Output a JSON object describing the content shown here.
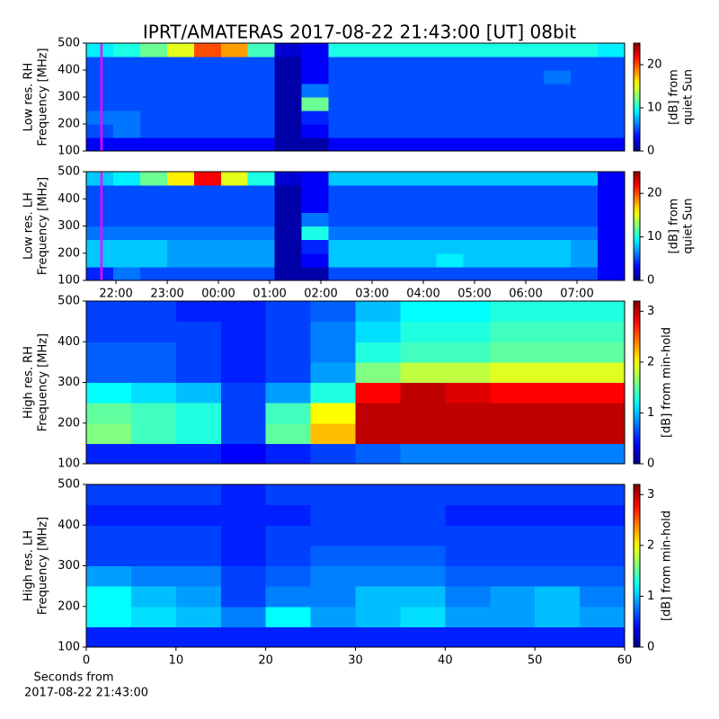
{
  "title": "IPRT/AMATERAS 2017-08-22 21:43:00 [UT]   08bit",
  "chart_data": [
    {
      "type": "heatmap",
      "ylabel": [
        "Low res. RH",
        "Frequency [MHz]"
      ],
      "colorbar_label": [
        "[dB] from",
        "quiet Sun"
      ],
      "colormap": "jet",
      "xlim": [
        21.42,
        31.93
      ],
      "ylim": [
        100,
        500
      ],
      "yticks": [
        100,
        200,
        300,
        400,
        500
      ],
      "clim": [
        0,
        25
      ],
      "cticks": [
        0,
        10,
        20
      ],
      "marker_x": 21.7167,
      "marker_color": "#ff00ff",
      "z": [
        [
          3,
          3,
          3,
          3,
          3,
          3,
          3,
          1,
          1,
          3,
          3,
          3,
          3,
          3,
          3,
          3,
          3,
          3,
          3,
          3
        ],
        [
          5,
          6,
          5,
          5,
          5,
          5,
          5,
          1,
          3,
          5,
          5,
          5,
          5,
          5,
          5,
          5,
          5,
          5,
          5,
          5
        ],
        [
          6,
          6,
          5,
          5,
          5,
          5,
          5,
          1,
          4,
          5,
          5,
          5,
          5,
          5,
          5,
          5,
          5,
          5,
          5,
          5
        ],
        [
          5,
          5,
          5,
          5,
          5,
          5,
          5,
          1,
          12,
          5,
          5,
          5,
          5,
          5,
          5,
          5,
          5,
          5,
          5,
          5
        ],
        [
          5,
          5,
          5,
          5,
          5,
          5,
          5,
          1,
          6,
          5,
          5,
          5,
          5,
          5,
          5,
          5,
          5,
          5,
          5,
          5
        ],
        [
          5,
          5,
          5,
          5,
          5,
          5,
          5,
          1,
          3,
          5,
          5,
          5,
          5,
          5,
          5,
          5,
          5,
          6,
          5,
          5
        ],
        [
          5,
          5,
          5,
          5,
          5,
          5,
          5,
          1,
          3,
          5,
          5,
          5,
          5,
          5,
          5,
          5,
          5,
          5,
          5,
          5
        ],
        [
          9,
          10,
          12,
          15,
          20,
          18,
          11,
          2,
          3,
          10,
          10,
          10,
          10,
          10,
          10,
          10,
          10,
          10,
          10,
          9
        ]
      ]
    },
    {
      "type": "heatmap",
      "ylabel": [
        "Low res. LH",
        "Frequency [MHz]"
      ],
      "colorbar_label": [
        "[dB] from",
        "quiet Sun"
      ],
      "colormap": "jet",
      "xlim": [
        21.42,
        31.93
      ],
      "ylim": [
        100,
        500
      ],
      "yticks": [
        100,
        200,
        300,
        400,
        500
      ],
      "xticks": [
        {
          "value": 22,
          "label": "22:00"
        },
        {
          "value": 23,
          "label": "23:00"
        },
        {
          "value": 24,
          "label": "00:00"
        },
        {
          "value": 25,
          "label": "01:00"
        },
        {
          "value": 26,
          "label": "02:00"
        },
        {
          "value": 27,
          "label": "03:00"
        },
        {
          "value": 28,
          "label": "04:00"
        },
        {
          "value": 29,
          "label": "05:00"
        },
        {
          "value": 30,
          "label": "06:00"
        },
        {
          "value": 31,
          "label": "07:00"
        }
      ],
      "clim": [
        0,
        25
      ],
      "cticks": [
        0,
        10,
        20
      ],
      "marker_x": 21.7167,
      "marker_color": "#ff00ff",
      "z": [
        [
          4,
          6,
          5,
          5,
          5,
          5,
          5,
          1,
          1,
          5,
          5,
          5,
          5,
          5,
          5,
          5,
          5,
          5,
          5,
          3
        ],
        [
          8,
          8,
          8,
          7,
          7,
          7,
          7,
          1,
          3,
          8,
          8,
          8,
          8,
          9,
          8,
          8,
          8,
          8,
          7,
          3
        ],
        [
          8,
          8,
          8,
          7,
          7,
          7,
          7,
          1,
          4,
          8,
          8,
          8,
          8,
          8,
          8,
          8,
          8,
          8,
          7,
          3
        ],
        [
          6,
          6,
          6,
          6,
          6,
          6,
          6,
          1,
          10,
          6,
          6,
          6,
          6,
          6,
          6,
          6,
          6,
          6,
          6,
          3
        ],
        [
          5,
          5,
          5,
          5,
          5,
          5,
          5,
          1,
          6,
          5,
          5,
          5,
          5,
          5,
          5,
          5,
          5,
          5,
          5,
          3
        ],
        [
          5,
          5,
          5,
          5,
          5,
          5,
          5,
          1,
          3,
          5,
          5,
          5,
          5,
          5,
          5,
          5,
          5,
          5,
          5,
          3
        ],
        [
          5,
          5,
          5,
          5,
          5,
          5,
          5,
          1,
          3,
          5,
          5,
          5,
          5,
          5,
          5,
          5,
          5,
          5,
          5,
          3
        ],
        [
          8,
          9,
          12,
          16,
          22,
          15,
          10,
          2,
          3,
          8,
          8,
          8,
          8,
          8,
          8,
          8,
          8,
          8,
          8,
          3
        ]
      ]
    },
    {
      "type": "heatmap",
      "ylabel": [
        "High res. RH",
        "Frequency [MHz]"
      ],
      "colorbar_label": [
        "[dB] from min-hold"
      ],
      "colormap": "jet",
      "xlim": [
        0,
        60
      ],
      "ylim": [
        100,
        500
      ],
      "yticks": [
        100,
        200,
        300,
        400,
        500
      ],
      "clim": [
        0,
        3.2
      ],
      "cticks": [
        0,
        1,
        2,
        3
      ],
      "z": [
        [
          0.5,
          0.5,
          0.5,
          0.4,
          0.5,
          0.6,
          0.7,
          0.8,
          0.8,
          0.8,
          0.8,
          0.8
        ],
        [
          1.6,
          1.4,
          1.3,
          0.6,
          1.5,
          2.2,
          3,
          3,
          3,
          3,
          3,
          3
        ],
        [
          1.5,
          1.4,
          1.3,
          0.6,
          1.4,
          2,
          3,
          3,
          3,
          3,
          3,
          3
        ],
        [
          1.2,
          1.1,
          1,
          0.6,
          0.9,
          1.3,
          2.8,
          3,
          2.9,
          2.8,
          2.8,
          2.8
        ],
        [
          0.7,
          0.7,
          0.6,
          0.5,
          0.6,
          0.9,
          1.6,
          1.8,
          1.8,
          1.9,
          1.9,
          1.9
        ],
        [
          0.7,
          0.7,
          0.6,
          0.5,
          0.6,
          0.8,
          1.3,
          1.4,
          1.4,
          1.5,
          1.5,
          1.5
        ],
        [
          0.6,
          0.6,
          0.6,
          0.5,
          0.6,
          0.8,
          1.1,
          1.3,
          1.3,
          1.4,
          1.4,
          1.4
        ],
        [
          0.6,
          0.6,
          0.5,
          0.5,
          0.6,
          0.7,
          1,
          1.2,
          1.2,
          1.3,
          1.3,
          1.3
        ]
      ]
    },
    {
      "type": "heatmap",
      "ylabel": [
        "High res. LH",
        "Frequency [MHz]"
      ],
      "colorbar_label": [
        "[dB] from min-hold"
      ],
      "xlabel": [
        "Seconds from",
        "2017-08-22 21:43:00"
      ],
      "colormap": "jet",
      "xlim": [
        0,
        60
      ],
      "ylim": [
        100,
        500
      ],
      "xticks": [
        0,
        10,
        20,
        30,
        40,
        50,
        60
      ],
      "yticks": [
        100,
        200,
        300,
        400,
        500
      ],
      "clim": [
        0,
        3.2
      ],
      "cticks": [
        0,
        1,
        2,
        3
      ],
      "z": [
        [
          0.5,
          0.5,
          0.5,
          0.5,
          0.5,
          0.5,
          0.5,
          0.5,
          0.5,
          0.5,
          0.5,
          0.5
        ],
        [
          1.2,
          1.1,
          1,
          0.8,
          1.2,
          0.9,
          1,
          1.1,
          0.9,
          0.9,
          1,
          0.9
        ],
        [
          1.2,
          1,
          0.9,
          0.6,
          0.8,
          0.8,
          1,
          1,
          0.8,
          0.9,
          1,
          0.8
        ],
        [
          0.9,
          0.8,
          0.8,
          0.6,
          0.7,
          0.8,
          0.8,
          0.8,
          0.7,
          0.7,
          0.7,
          0.7
        ],
        [
          0.6,
          0.6,
          0.6,
          0.5,
          0.6,
          0.7,
          0.7,
          0.7,
          0.6,
          0.6,
          0.6,
          0.6
        ],
        [
          0.6,
          0.6,
          0.6,
          0.5,
          0.6,
          0.6,
          0.6,
          0.6,
          0.6,
          0.6,
          0.6,
          0.6
        ],
        [
          0.5,
          0.5,
          0.5,
          0.5,
          0.5,
          0.6,
          0.6,
          0.6,
          0.5,
          0.5,
          0.5,
          0.5
        ],
        [
          0.6,
          0.6,
          0.6,
          0.5,
          0.6,
          0.6,
          0.6,
          0.6,
          0.6,
          0.6,
          0.6,
          0.6
        ]
      ]
    }
  ]
}
